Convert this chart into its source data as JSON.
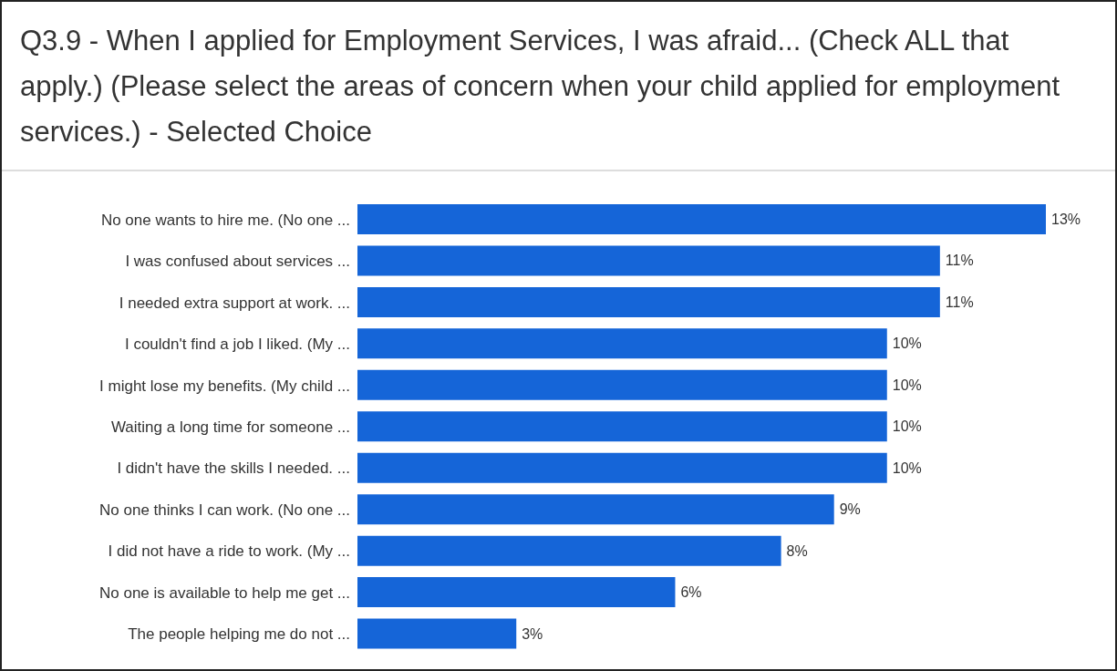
{
  "chart_data": {
    "type": "bar",
    "orientation": "horizontal",
    "title": "Q3.9 - When I applied for Employment Services, I was afraid... (Check ALL that apply.) (Please select the areas of concern when your child applied for employment services.) - Selected Choice",
    "categories": [
      "No one wants to hire me. (No one ...",
      "I was confused about services ...",
      "I needed extra support at work. ...",
      "I couldn't find a job I liked. (My ...",
      "I might lose my benefits. (My child ...",
      "Waiting a long time for someone ...",
      "I didn't have the skills I needed. ...",
      "No one thinks I can work. (No one ...",
      "I did not have a ride to work. (My ...",
      "No one is available to help me get ...",
      "The people helping me do not ..."
    ],
    "values": [
      13,
      11,
      11,
      10,
      10,
      10,
      10,
      9,
      8,
      6,
      3
    ],
    "value_labels": [
      "13%",
      "11%",
      "11%",
      "10%",
      "10%",
      "10%",
      "10%",
      "9%",
      "8%",
      "6%",
      "3%"
    ],
    "color": "#1565d8"
  }
}
